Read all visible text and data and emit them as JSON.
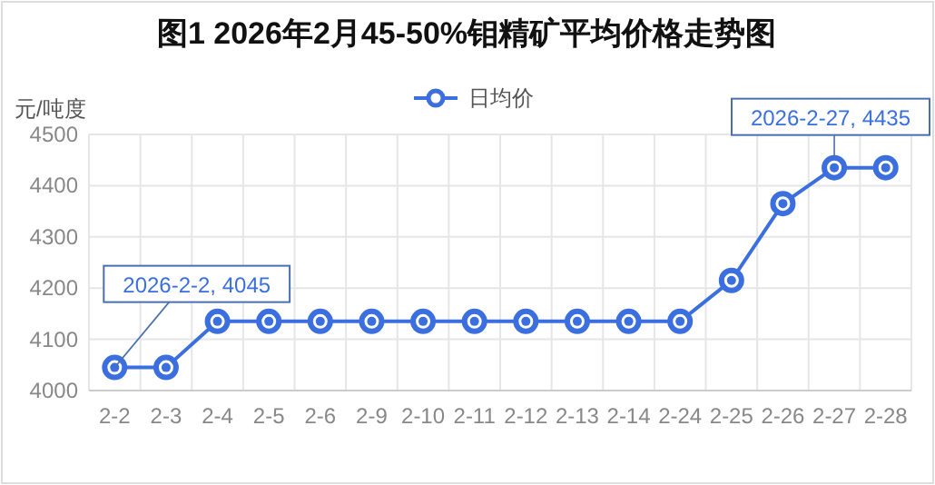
{
  "chart_data": {
    "type": "line",
    "title": "图1  2026年2月45-50%钼精矿平均价格走势图",
    "ylabel": "元/吨度",
    "categories": [
      "2-2",
      "2-3",
      "2-4",
      "2-5",
      "2-6",
      "2-9",
      "2-10",
      "2-11",
      "2-12",
      "2-13",
      "2-14",
      "2-24",
      "2-25",
      "2-26",
      "2-27",
      "2-28"
    ],
    "series": [
      {
        "name": "日均价",
        "color": "#3b6fe0",
        "values": [
          4045,
          4045,
          4135,
          4135,
          4135,
          4135,
          4135,
          4135,
          4135,
          4135,
          4135,
          4135,
          4215,
          4365,
          4435,
          4435
        ]
      }
    ],
    "ylim": [
      4000,
      4500
    ],
    "yticks": [
      4000,
      4100,
      4200,
      4300,
      4400,
      4500
    ],
    "grid": true,
    "legend": "top",
    "marker": "circle",
    "annotations": [
      {
        "text": "2026-2-2, 4045",
        "x": "2-2",
        "y": 4045
      },
      {
        "text": "2026-2-27, 4435",
        "x": "2-27",
        "y": 4435
      }
    ]
  }
}
